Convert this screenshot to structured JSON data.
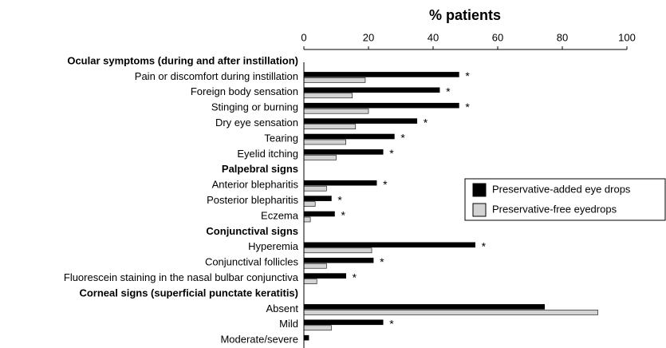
{
  "chart_data": {
    "type": "bar",
    "orientation": "horizontal",
    "xlabel": "% patients",
    "groups": [
      {
        "name": "Ocular symptoms (during and after instillation)",
        "categories": [
          "Pain or discomfort during instillation",
          "Foreign body sensation",
          "Stinging or burning",
          "Dry eye sensation",
          "Tearing",
          "Eyelid itching"
        ]
      },
      {
        "name": "Palpebral signs",
        "categories": [
          "Anterior blepharitis",
          "Posterior blepharitis",
          "Eczema"
        ]
      },
      {
        "name": "Conjunctival signs",
        "categories": [
          "Hyperemia",
          "Conjunctival follicles",
          "Fluorescein staining in the nasal bulbar conjunctiva"
        ]
      },
      {
        "name": "Corneal signs (superficial punctate keratitis)",
        "categories": [
          "Absent",
          "Mild",
          "Moderate/severe"
        ]
      }
    ],
    "series": [
      {
        "name": "Preservative-added eye drops",
        "color": "#000000",
        "values": [
          48,
          42,
          48,
          35,
          28,
          24.5,
          22.5,
          8.5,
          9.5,
          53,
          21.5,
          13,
          74.5,
          24.5,
          1.5
        ]
      },
      {
        "name": "Preservative-free eyedrops",
        "color": "#d3d3d3",
        "values": [
          19,
          15,
          20,
          16,
          13,
          10,
          7,
          3.5,
          2,
          21,
          7,
          4,
          91,
          8.5,
          0
        ]
      }
    ],
    "markers": [
      "*",
      "*",
      "*",
      "*",
      "*",
      "*",
      "*",
      "*",
      "*",
      "*",
      "*",
      "*",
      null,
      "*",
      null
    ],
    "xlim": [
      0,
      100
    ],
    "xticks": [
      0,
      20,
      40,
      60,
      80,
      100
    ],
    "legend": "right"
  }
}
